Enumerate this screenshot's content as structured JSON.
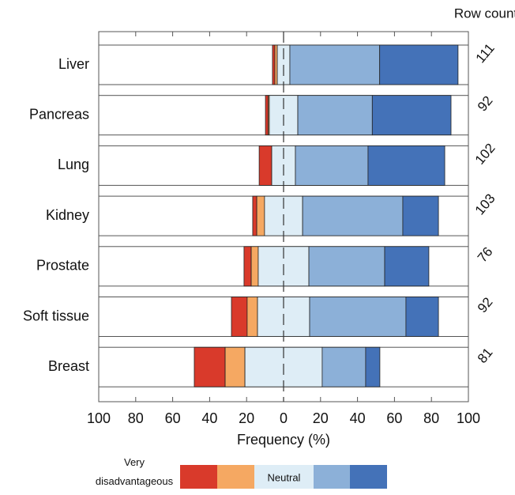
{
  "chart_data": {
    "type": "diverging_bar",
    "categories": [
      "Liver",
      "Pancreas",
      "Lung",
      "Kidney",
      "Prostate",
      "Soft tissue",
      "Breast"
    ],
    "series": [
      {
        "name": "Very disadvantageous",
        "color": "#d93a2b",
        "values": [
          1.3,
          1.5,
          6.8,
          2.2,
          3.9,
          8.5,
          16.7
        ]
      },
      {
        "color": "#f5a862",
        "values": [
          1.3,
          0.6,
          0,
          4.2,
          3.8,
          5.6,
          10.7
        ]
      },
      {
        "name": "Neutral",
        "color": "#deedf6",
        "values": [
          6.8,
          15.4,
          12.8,
          20.6,
          27.4,
          28.2,
          41.8
        ]
      },
      {
        "color": "#8cb0d8",
        "values": [
          48.6,
          40.3,
          39.3,
          54.2,
          41.0,
          52.1,
          23.5
        ]
      },
      {
        "color": "#4472b8",
        "values": [
          42.4,
          42.6,
          41.5,
          19.3,
          23.9,
          17.6,
          7.7
        ]
      }
    ],
    "row_count_label": "Row count",
    "row_counts": [
      111,
      92,
      102,
      103,
      76,
      92,
      81
    ],
    "xlabel": "Frequency (%)",
    "xlim": [
      -100,
      100
    ],
    "xticks": [
      {
        "value": -100,
        "label": "100"
      },
      {
        "value": -80,
        "label": "80"
      },
      {
        "value": -60,
        "label": "60"
      },
      {
        "value": -40,
        "label": "40"
      },
      {
        "value": -20,
        "label": "20"
      },
      0,
      20,
      40,
      60,
      80,
      100
    ],
    "neutral_series": 2
  }
}
